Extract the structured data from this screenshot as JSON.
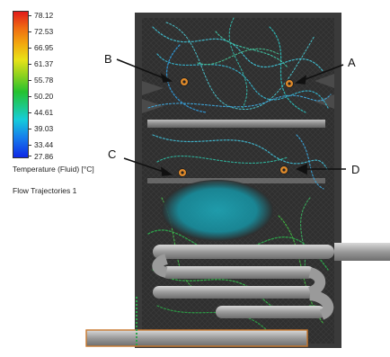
{
  "legend": {
    "ticks": [
      "78.12",
      "72.53",
      "66.95",
      "61.37",
      "55.78",
      "50.20",
      "44.61",
      "39.03",
      "33.44",
      "27.86"
    ],
    "title": "Temperature (Fluid) [°C]",
    "subtitle": "Flow Trajectories 1",
    "gradient_colors": [
      "#e11b1b",
      "#ef6a12",
      "#f2a80f",
      "#e9e217",
      "#8bd11f",
      "#25c22f",
      "#1cc98e",
      "#16cdd9",
      "#1780ec",
      "#1029e6"
    ]
  },
  "points": [
    {
      "label": "A"
    },
    {
      "label": "B"
    },
    {
      "label": "C"
    },
    {
      "label": "D"
    }
  ],
  "colors": {
    "tank_wall": "#3a3a3a",
    "tank_inner": "#2d2d2d",
    "pipe": "#9b9b9b",
    "inlet_pipe_outline": "#c8782d",
    "trajectory_cool": "#3fb7c8",
    "trajectory_warm": "#2da24a"
  }
}
